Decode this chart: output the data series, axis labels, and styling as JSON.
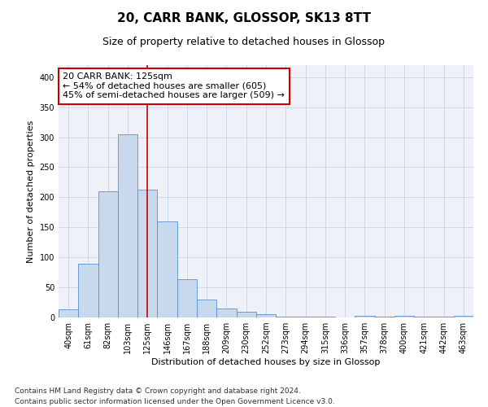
{
  "title1": "20, CARR BANK, GLOSSOP, SK13 8TT",
  "title2": "Size of property relative to detached houses in Glossop",
  "xlabel": "Distribution of detached houses by size in Glossop",
  "ylabel": "Number of detached properties",
  "categories": [
    "40sqm",
    "61sqm",
    "82sqm",
    "103sqm",
    "125sqm",
    "146sqm",
    "167sqm",
    "188sqm",
    "209sqm",
    "230sqm",
    "252sqm",
    "273sqm",
    "294sqm",
    "315sqm",
    "336sqm",
    "357sqm",
    "378sqm",
    "400sqm",
    "421sqm",
    "442sqm",
    "463sqm"
  ],
  "values": [
    14,
    89,
    210,
    305,
    213,
    160,
    64,
    30,
    15,
    9,
    5,
    1,
    2,
    1,
    0,
    3,
    1,
    3,
    1,
    1,
    3
  ],
  "bar_color": "#c9d9ed",
  "bar_edge_color": "#5b8fc9",
  "vertical_line_x": 4,
  "vertical_line_color": "#cc0000",
  "annotation_line1": "20 CARR BANK: 125sqm",
  "annotation_line2": "← 54% of detached houses are smaller (605)",
  "annotation_line3": "45% of semi-detached houses are larger (509) →",
  "annotation_box_color": "#ffffff",
  "annotation_box_edge_color": "#cc0000",
  "ylim": [
    0,
    420
  ],
  "yticks": [
    0,
    50,
    100,
    150,
    200,
    250,
    300,
    350,
    400
  ],
  "grid_color": "#c8d4e8",
  "background_color": "#eef2f8",
  "footer1": "Contains HM Land Registry data © Crown copyright and database right 2024.",
  "footer2": "Contains public sector information licensed under the Open Government Licence v3.0.",
  "title_fontsize": 11,
  "subtitle_fontsize": 9,
  "axis_label_fontsize": 8,
  "tick_fontsize": 7,
  "annotation_fontsize": 8
}
